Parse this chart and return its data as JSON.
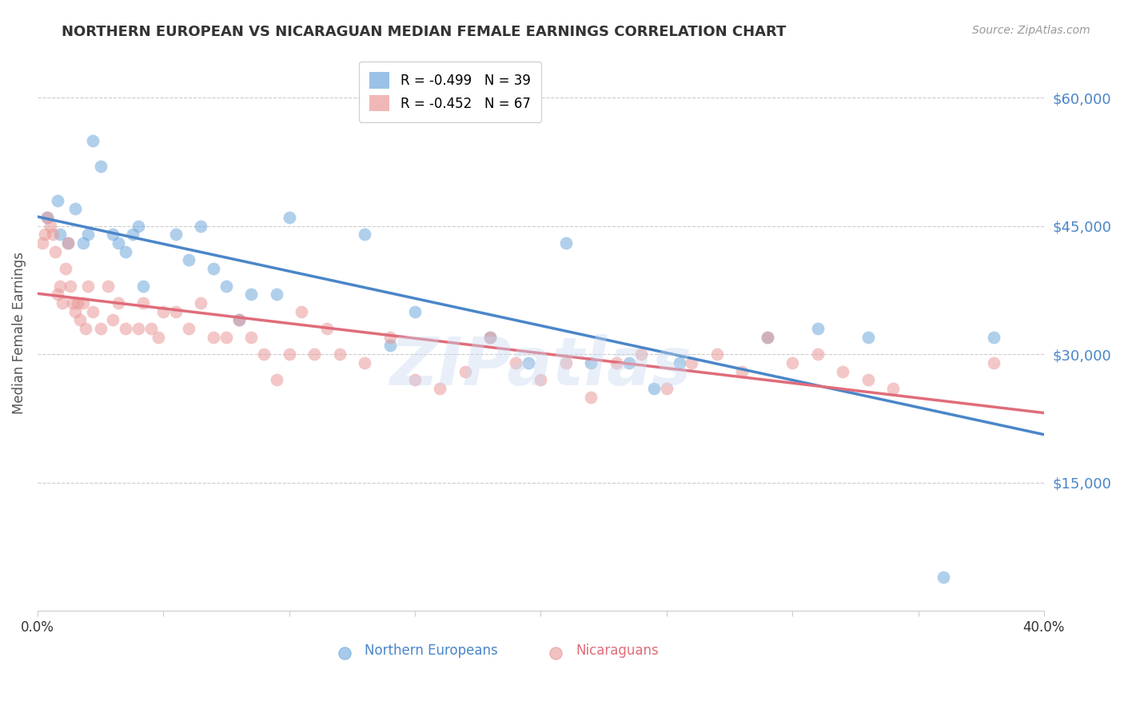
{
  "title": "NORTHERN EUROPEAN VS NICARAGUAN MEDIAN FEMALE EARNINGS CORRELATION CHART",
  "source": "Source: ZipAtlas.com",
  "ylabel": "Median Female Earnings",
  "ytick_labels": [
    "$15,000",
    "$30,000",
    "$45,000",
    "$60,000"
  ],
  "ytick_values": [
    15000,
    30000,
    45000,
    60000
  ],
  "ymin": 0,
  "ymax": 65000,
  "xmin": 0.0,
  "xmax": 0.4,
  "legend_blue_r": "R = -0.499",
  "legend_blue_n": "N = 39",
  "legend_pink_r": "R = -0.452",
  "legend_pink_n": "N = 67",
  "legend_blue_label": "Northern Europeans",
  "legend_pink_label": "Nicaraguans",
  "watermark": "ZIPatlas",
  "blue_color": "#6fa8dc",
  "pink_color": "#ea9999",
  "blue_line_color": "#4a86c8",
  "pink_line_color": "#e06c7a",
  "title_color": "#333333",
  "source_color": "#999999",
  "ytick_color": "#4a86c8",
  "xtick_color": "#333333",
  "grid_color": "#cccccc",
  "background_color": "#ffffff",
  "blue_x": [
    0.004,
    0.008,
    0.009,
    0.012,
    0.015,
    0.018,
    0.02,
    0.022,
    0.025,
    0.03,
    0.032,
    0.035,
    0.038,
    0.04,
    0.042,
    0.055,
    0.06,
    0.065,
    0.07,
    0.075,
    0.08,
    0.085,
    0.095,
    0.1,
    0.13,
    0.14,
    0.15,
    0.18,
    0.195,
    0.21,
    0.22,
    0.235,
    0.245,
    0.255,
    0.29,
    0.31,
    0.33,
    0.36,
    0.38
  ],
  "blue_y": [
    46000,
    48000,
    44000,
    43000,
    47000,
    43000,
    44000,
    55000,
    52000,
    44000,
    43000,
    42000,
    44000,
    45000,
    38000,
    44000,
    41000,
    45000,
    40000,
    38000,
    34000,
    37000,
    37000,
    46000,
    44000,
    31000,
    35000,
    32000,
    29000,
    43000,
    29000,
    29000,
    26000,
    29000,
    32000,
    33000,
    32000,
    4000,
    32000
  ],
  "pink_x": [
    0.002,
    0.003,
    0.004,
    0.005,
    0.006,
    0.007,
    0.008,
    0.009,
    0.01,
    0.011,
    0.012,
    0.013,
    0.014,
    0.015,
    0.016,
    0.017,
    0.018,
    0.019,
    0.02,
    0.022,
    0.025,
    0.028,
    0.03,
    0.032,
    0.035,
    0.04,
    0.042,
    0.045,
    0.048,
    0.05,
    0.055,
    0.06,
    0.065,
    0.07,
    0.075,
    0.08,
    0.085,
    0.09,
    0.095,
    0.1,
    0.105,
    0.11,
    0.115,
    0.12,
    0.13,
    0.14,
    0.15,
    0.16,
    0.17,
    0.18,
    0.19,
    0.2,
    0.21,
    0.22,
    0.23,
    0.24,
    0.25,
    0.26,
    0.27,
    0.28,
    0.29,
    0.3,
    0.31,
    0.32,
    0.33,
    0.34,
    0.38
  ],
  "pink_y": [
    43000,
    44000,
    46000,
    45000,
    44000,
    42000,
    37000,
    38000,
    36000,
    40000,
    43000,
    38000,
    36000,
    35000,
    36000,
    34000,
    36000,
    33000,
    38000,
    35000,
    33000,
    38000,
    34000,
    36000,
    33000,
    33000,
    36000,
    33000,
    32000,
    35000,
    35000,
    33000,
    36000,
    32000,
    32000,
    34000,
    32000,
    30000,
    27000,
    30000,
    35000,
    30000,
    33000,
    30000,
    29000,
    32000,
    27000,
    26000,
    28000,
    32000,
    29000,
    27000,
    29000,
    25000,
    29000,
    30000,
    26000,
    29000,
    30000,
    28000,
    32000,
    29000,
    30000,
    28000,
    27000,
    26000,
    29000
  ]
}
